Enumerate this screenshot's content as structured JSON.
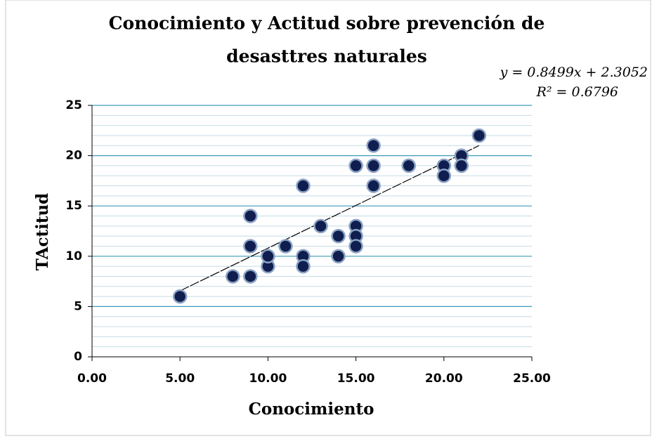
{
  "chart_data": {
    "type": "scatter",
    "title": [
      "Conocimiento y Actitud sobre prevención de",
      "desasttres naturales"
    ],
    "x_label": "Conocimiento",
    "y_label": "TActitud",
    "x": [
      5,
      8,
      9,
      9,
      9,
      10,
      10,
      11,
      12,
      12,
      12,
      13,
      14,
      14,
      15,
      15,
      15,
      15,
      16,
      16,
      16,
      18,
      20,
      20,
      21,
      21,
      22
    ],
    "values": [
      6,
      8,
      8,
      11,
      14,
      9,
      10,
      11,
      17,
      10,
      9,
      13,
      12,
      10,
      19,
      13,
      12,
      11,
      21,
      19,
      17,
      19,
      19,
      18,
      20,
      19,
      22
    ],
    "color": "#0f1e4e",
    "xlim": [
      0,
      25
    ],
    "xticks": [
      {
        "value": 0,
        "label": "0.00"
      },
      {
        "value": 5,
        "label": "5.00"
      },
      {
        "value": 10,
        "label": "10.00"
      },
      {
        "value": 15,
        "label": "15.00"
      },
      {
        "value": 20,
        "label": "20.00"
      },
      {
        "value": 25,
        "label": "25.00"
      }
    ],
    "ylim": [
      0,
      25
    ],
    "yticks": [
      0,
      5,
      10,
      15,
      20,
      25
    ],
    "grid": true,
    "minor_grid": true,
    "trendline": {
      "slope": 0.8499,
      "intercept": 2.3052,
      "equation": "y = 0.8499x + 2.3052",
      "r_squared": "R² = 0.6796"
    }
  }
}
